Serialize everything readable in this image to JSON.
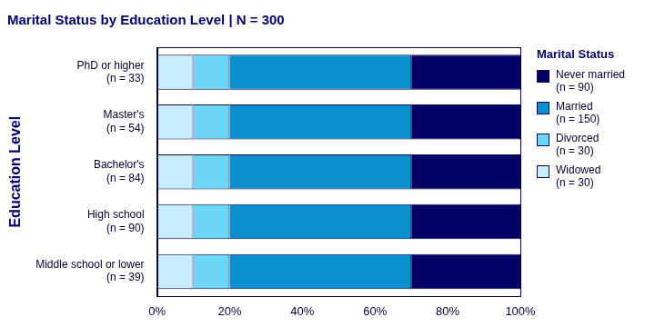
{
  "chart_data": {
    "type": "bar",
    "title": "Marital Status by Education Level | N = 300",
    "y_label": "Education Level",
    "orientation": "horizontal",
    "stacked": true,
    "grid": false,
    "legend": "right",
    "legend_title": "Marital Status",
    "categories": [
      [
        "PhD or higher",
        "(n = 33)"
      ],
      [
        "Master's",
        "(n = 54)"
      ],
      [
        "Bachelor's",
        "(n = 84)"
      ],
      [
        "High school",
        "(n = 90)"
      ],
      [
        "Middle school or lower",
        "(n = 39)"
      ]
    ],
    "series": [
      {
        "name": [
          "Never married",
          "(n = 90)"
        ],
        "color": "#000066",
        "values": [
          30,
          30,
          30,
          30,
          30
        ]
      },
      {
        "name": [
          "Married",
          "(n = 150)"
        ],
        "color": "#0c8fcf",
        "values": [
          50,
          50,
          50,
          50,
          50
        ]
      },
      {
        "name": [
          "Divorced",
          "(n = 30)"
        ],
        "color": "#6dd6f7",
        "values": [
          10,
          10,
          10,
          10,
          10
        ]
      },
      {
        "name": [
          "Widowed",
          "(n = 30)"
        ],
        "color": "#c7edfc",
        "values": [
          10,
          10,
          10,
          10,
          10
        ]
      }
    ],
    "xlim": [
      0,
      100
    ],
    "xticks": [
      {
        "value": 0,
        "label": "0%"
      },
      {
        "value": 20,
        "label": "20%"
      },
      {
        "value": 40,
        "label": "40%"
      },
      {
        "value": 60,
        "label": "60%"
      },
      {
        "value": 80,
        "label": "80%"
      },
      {
        "value": 100,
        "label": "100%"
      }
    ]
  }
}
